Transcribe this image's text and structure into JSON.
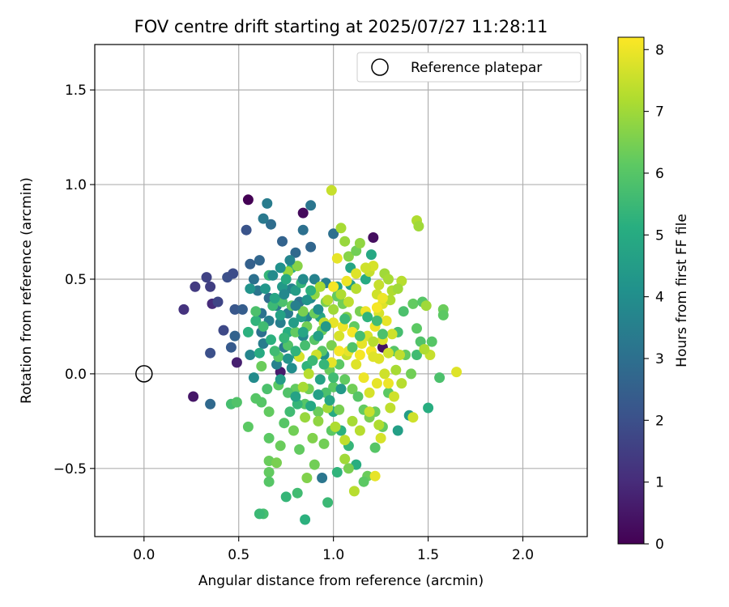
{
  "chart_data": {
    "type": "scatter",
    "title": "FOV centre drift starting at 2025/07/27 11:28:11",
    "xlabel": "Angular distance from reference (arcmin)",
    "ylabel": "Rotation from reference (arcmin)",
    "xlim": [
      -0.26,
      2.34
    ],
    "ylim": [
      -0.86,
      1.74
    ],
    "xticks": [
      0.0,
      0.5,
      1.0,
      1.5,
      2.0
    ],
    "xtick_labels": [
      "0.0",
      "0.5",
      "1.0",
      "1.5",
      "2.0"
    ],
    "yticks": [
      -0.5,
      0.0,
      0.5,
      1.0,
      1.5
    ],
    "ytick_labels": [
      "−0.5",
      "0.0",
      "0.5",
      "1.0",
      "1.5"
    ],
    "grid": true,
    "legend": {
      "position": "top-right",
      "entries": [
        {
          "label": "Reference platepar",
          "marker": "open-circle"
        }
      ]
    },
    "reference_point": {
      "x": 0.0,
      "y": 0.0
    },
    "colorbar": {
      "label": "Hours from first FF file",
      "colormap": "viridis",
      "range": [
        0,
        8.2
      ],
      "ticks": [
        0,
        1,
        2,
        3,
        4,
        5,
        6,
        7,
        8
      ],
      "tick_labels": [
        "0",
        "1",
        "2",
        "3",
        "4",
        "5",
        "6",
        "7",
        "8"
      ]
    },
    "points": [
      [
        0.55,
        0.92,
        0.0
      ],
      [
        0.84,
        0.85,
        0.2
      ],
      [
        1.21,
        0.72,
        0.3
      ],
      [
        0.26,
        -0.12,
        0.5
      ],
      [
        0.72,
        0.01,
        0.6
      ],
      [
        1.26,
        0.14,
        0.4
      ],
      [
        0.49,
        0.06,
        0.7
      ],
      [
        0.36,
        0.37,
        1.0
      ],
      [
        0.21,
        0.34,
        1.2
      ],
      [
        0.27,
        0.46,
        1.4
      ],
      [
        0.33,
        0.51,
        1.6
      ],
      [
        0.35,
        0.46,
        1.5
      ],
      [
        0.42,
        0.23,
        1.8
      ],
      [
        0.44,
        0.51,
        2.0
      ],
      [
        0.47,
        0.53,
        1.9
      ],
      [
        0.39,
        0.38,
        1.7
      ],
      [
        0.54,
        0.76,
        2.1
      ],
      [
        0.35,
        0.11,
        2.0
      ],
      [
        0.48,
        0.34,
        2.2
      ],
      [
        0.52,
        0.34,
        2.4
      ],
      [
        0.46,
        0.14,
        2.3
      ],
      [
        0.48,
        0.2,
        2.6
      ],
      [
        0.35,
        -0.16,
        2.8
      ],
      [
        0.56,
        0.58,
        2.5
      ],
      [
        0.61,
        0.6,
        2.7
      ],
      [
        0.67,
        0.79,
        2.9
      ],
      [
        0.73,
        0.7,
        2.6
      ],
      [
        0.8,
        0.64,
        2.8
      ],
      [
        0.84,
        0.76,
        3.0
      ],
      [
        0.88,
        0.89,
        3.2
      ],
      [
        0.65,
        0.9,
        3.4
      ],
      [
        0.63,
        0.82,
        3.3
      ],
      [
        0.58,
        0.5,
        3.0
      ],
      [
        0.6,
        0.44,
        3.2
      ],
      [
        0.62,
        0.32,
        3.1
      ],
      [
        0.66,
        0.4,
        2.9
      ],
      [
        0.7,
        0.36,
        3.3
      ],
      [
        0.72,
        0.27,
        3.5
      ],
      [
        0.76,
        0.32,
        3.4
      ],
      [
        0.78,
        0.45,
        3.6
      ],
      [
        0.82,
        0.38,
        3.1
      ],
      [
        0.86,
        0.3,
        3.7
      ],
      [
        0.88,
        0.4,
        3.8
      ],
      [
        0.9,
        0.5,
        3.6
      ],
      [
        0.63,
        0.16,
        3.4
      ],
      [
        0.56,
        0.1,
        3.7
      ],
      [
        0.58,
        -0.02,
        3.9
      ],
      [
        0.66,
        0.28,
        3.5
      ],
      [
        0.74,
        0.14,
        3.3
      ],
      [
        0.84,
        0.2,
        3.8
      ],
      [
        0.96,
        0.48,
        3.5
      ],
      [
        1.0,
        0.74,
        3.0
      ],
      [
        0.94,
        -0.55,
        3.2
      ],
      [
        0.88,
        0.67,
        2.7
      ],
      [
        0.62,
        0.22,
        3.0
      ],
      [
        0.7,
        0.05,
        3.6
      ],
      [
        0.78,
        0.03,
        4.0
      ],
      [
        0.95,
        0.1,
        4.1
      ],
      [
        0.56,
        0.45,
        4.2
      ],
      [
        0.64,
        0.45,
        4.3
      ],
      [
        0.73,
        0.46,
        4.4
      ],
      [
        0.8,
        0.44,
        4.5
      ],
      [
        0.83,
        0.3,
        4.6
      ],
      [
        0.93,
        0.3,
        4.8
      ],
      [
        1.02,
        0.46,
        4.7
      ],
      [
        1.09,
        0.47,
        4.6
      ],
      [
        1.09,
        0.56,
        4.8
      ],
      [
        1.2,
        0.63,
        4.9
      ],
      [
        1.17,
        0.5,
        5.0
      ],
      [
        0.78,
        0.56,
        5.1
      ],
      [
        0.59,
        0.28,
        5.3
      ],
      [
        0.66,
        0.52,
        5.4
      ],
      [
        0.55,
        0.22,
        5.2
      ],
      [
        0.61,
        0.11,
        5.0
      ],
      [
        0.67,
        0.18,
        5.2
      ],
      [
        0.76,
        0.22,
        5.1
      ],
      [
        0.81,
        0.1,
        4.9
      ],
      [
        0.86,
        0.04,
        5.3
      ],
      [
        0.93,
        -0.03,
        4.7
      ],
      [
        1.0,
        -0.2,
        5.0
      ],
      [
        1.04,
        -0.3,
        5.2
      ],
      [
        1.08,
        -0.38,
        5.4
      ],
      [
        1.12,
        -0.48,
        5.1
      ],
      [
        1.02,
        -0.52,
        5.3
      ],
      [
        0.97,
        -0.68,
        5.5
      ],
      [
        0.81,
        -0.63,
        5.6
      ],
      [
        0.75,
        -0.65,
        5.4
      ],
      [
        0.85,
        -0.77,
        5.2
      ],
      [
        0.63,
        -0.74,
        5.7
      ],
      [
        0.61,
        -0.74,
        5.5
      ],
      [
        1.4,
        -0.22,
        4.5
      ],
      [
        1.34,
        -0.3,
        4.6
      ],
      [
        1.5,
        -0.18,
        5.1
      ],
      [
        1.56,
        -0.02,
        5.8
      ],
      [
        1.44,
        0.1,
        5.6
      ],
      [
        1.46,
        0.17,
        5.9
      ],
      [
        1.52,
        0.17,
        6.0
      ],
      [
        1.44,
        0.24,
        6.1
      ],
      [
        1.42,
        0.37,
        6.2
      ],
      [
        1.47,
        0.38,
        6.0
      ],
      [
        1.58,
        0.34,
        6.3
      ],
      [
        1.58,
        0.31,
        6.1
      ],
      [
        1.37,
        0.33,
        5.8
      ],
      [
        1.34,
        0.22,
        5.7
      ],
      [
        1.32,
        0.12,
        6.0
      ],
      [
        1.38,
        0.1,
        6.2
      ],
      [
        1.41,
        0.0,
        6.4
      ],
      [
        1.29,
        -0.1,
        6.1
      ],
      [
        1.22,
        -0.2,
        6.3
      ],
      [
        1.26,
        -0.28,
        6.2
      ],
      [
        1.22,
        -0.39,
        6.0
      ],
      [
        1.18,
        -0.54,
        6.3
      ],
      [
        1.16,
        -0.57,
        6.1
      ],
      [
        1.08,
        -0.5,
        6.5
      ],
      [
        0.9,
        -0.48,
        6.4
      ],
      [
        0.86,
        -0.55,
        6.6
      ],
      [
        0.66,
        -0.52,
        6.2
      ],
      [
        0.66,
        -0.57,
        6.0
      ],
      [
        0.66,
        -0.46,
        6.3
      ],
      [
        0.7,
        -0.47,
        6.5
      ],
      [
        0.66,
        -0.34,
        6.1
      ],
      [
        0.72,
        -0.38,
        6.3
      ],
      [
        0.74,
        -0.26,
        6.0
      ],
      [
        0.79,
        -0.3,
        6.4
      ],
      [
        0.82,
        -0.4,
        6.2
      ],
      [
        0.89,
        -0.34,
        6.6
      ],
      [
        0.95,
        -0.37,
        6.4
      ],
      [
        0.99,
        -0.3,
        6.1
      ],
      [
        1.03,
        -0.19,
        6.5
      ],
      [
        0.92,
        -0.2,
        6.3
      ],
      [
        0.85,
        -0.16,
        6.0
      ],
      [
        0.8,
        -0.08,
        6.2
      ],
      [
        0.76,
        -0.1,
        5.9
      ],
      [
        0.71,
        -0.06,
        6.1
      ],
      [
        0.65,
        -0.08,
        5.8
      ],
      [
        0.62,
        -0.15,
        6.0
      ],
      [
        0.66,
        -0.2,
        6.2
      ],
      [
        0.55,
        -0.28,
        6.1
      ],
      [
        0.46,
        -0.16,
        5.7
      ],
      [
        0.49,
        -0.15,
        5.9
      ],
      [
        0.59,
        -0.13,
        6.0
      ],
      [
        0.62,
        0.04,
        6.3
      ],
      [
        0.71,
        0.09,
        6.1
      ],
      [
        0.76,
        0.15,
        5.9
      ],
      [
        0.8,
        0.22,
        6.2
      ],
      [
        0.86,
        0.25,
        6.4
      ],
      [
        0.9,
        0.18,
        6.0
      ],
      [
        0.94,
        0.23,
        6.3
      ],
      [
        0.99,
        0.15,
        6.5
      ],
      [
        1.03,
        0.05,
        6.1
      ],
      [
        1.06,
        -0.03,
        6.2
      ],
      [
        1.1,
        -0.08,
        6.4
      ],
      [
        1.13,
        -0.12,
        6.0
      ],
      [
        1.16,
        -0.19,
        6.2
      ],
      [
        1.19,
        -0.23,
        6.5
      ],
      [
        0.94,
        0.12,
        6.0
      ],
      [
        0.98,
        0.02,
        6.3
      ],
      [
        1.0,
        -0.07,
        6.1
      ],
      [
        0.87,
        -0.08,
        6.4
      ],
      [
        0.9,
        0.32,
        6.3
      ],
      [
        0.96,
        0.38,
        6.5
      ],
      [
        1.02,
        0.41,
        6.2
      ],
      [
        1.05,
        0.37,
        6.4
      ],
      [
        1.07,
        0.3,
        6.6
      ],
      [
        1.11,
        0.25,
        6.2
      ],
      [
        1.14,
        0.33,
        6.5
      ],
      [
        1.08,
        0.62,
        6.7
      ],
      [
        1.12,
        0.65,
        6.4
      ],
      [
        1.06,
        0.7,
        6.9
      ],
      [
        1.04,
        0.77,
        7.1
      ],
      [
        1.27,
        0.53,
        7.0
      ],
      [
        1.31,
        0.44,
        7.2
      ],
      [
        1.36,
        0.49,
        7.3
      ],
      [
        1.34,
        0.45,
        7.0
      ],
      [
        1.29,
        0.5,
        7.1
      ],
      [
        1.44,
        0.81,
        7.2
      ],
      [
        1.45,
        0.78,
        7.0
      ],
      [
        0.99,
        0.97,
        7.5
      ],
      [
        1.14,
        0.69,
        6.8
      ],
      [
        0.81,
        0.57,
        6.7
      ],
      [
        0.76,
        0.54,
        6.9
      ],
      [
        0.9,
        0.42,
        6.8
      ],
      [
        0.93,
        0.46,
        7.1
      ],
      [
        0.97,
        0.39,
        7.3
      ],
      [
        1.0,
        0.34,
        7.0
      ],
      [
        1.04,
        0.42,
        7.2
      ],
      [
        1.08,
        0.38,
        7.4
      ],
      [
        1.12,
        0.45,
        7.3
      ],
      [
        1.19,
        0.54,
        7.5
      ],
      [
        1.23,
        0.42,
        7.6
      ],
      [
        1.26,
        0.37,
        7.8
      ],
      [
        1.24,
        0.32,
        7.7
      ],
      [
        1.28,
        0.28,
        7.9
      ],
      [
        1.31,
        0.21,
        7.6
      ],
      [
        1.26,
        0.18,
        7.8
      ],
      [
        1.22,
        0.25,
        8.0
      ],
      [
        1.18,
        0.2,
        7.7
      ],
      [
        1.15,
        0.16,
        7.9
      ],
      [
        1.2,
        0.12,
        8.1
      ],
      [
        1.24,
        0.08,
        7.8
      ],
      [
        1.27,
        0.0,
        7.6
      ],
      [
        1.23,
        -0.05,
        7.9
      ],
      [
        1.19,
        -0.1,
        7.7
      ],
      [
        1.16,
        -0.02,
        8.0
      ],
      [
        1.12,
        0.05,
        7.8
      ],
      [
        1.07,
        0.1,
        7.5
      ],
      [
        1.03,
        0.2,
        7.7
      ],
      [
        1.0,
        0.27,
        7.9
      ],
      [
        0.95,
        0.27,
        7.4
      ],
      [
        0.91,
        0.1,
        7.6
      ],
      [
        0.87,
        0.0,
        7.3
      ],
      [
        0.84,
        -0.07,
        7.1
      ],
      [
        0.85,
        -0.23,
        6.9
      ],
      [
        0.92,
        -0.25,
        6.8
      ],
      [
        0.97,
        -0.18,
        7.0
      ],
      [
        1.01,
        -0.28,
        7.2
      ],
      [
        1.06,
        -0.35,
        7.4
      ],
      [
        1.1,
        -0.25,
        7.1
      ],
      [
        1.14,
        -0.3,
        7.3
      ],
      [
        1.19,
        -0.2,
        7.5
      ],
      [
        1.24,
        -0.27,
        7.2
      ],
      [
        1.3,
        -0.18,
        7.4
      ],
      [
        1.32,
        -0.12,
        7.6
      ],
      [
        1.36,
        -0.05,
        7.3
      ],
      [
        1.33,
        0.02,
        7.1
      ],
      [
        1.35,
        0.1,
        7.4
      ],
      [
        1.29,
        0.11,
        7.6
      ],
      [
        1.21,
        0.17,
        7.3
      ],
      [
        1.3,
        0.39,
        7.2
      ],
      [
        1.24,
        0.47,
        7.5
      ],
      [
        1.21,
        0.57,
        7.7
      ],
      [
        1.17,
        0.56,
        7.6
      ],
      [
        1.12,
        0.53,
        7.8
      ],
      [
        1.02,
        0.61,
        7.9
      ],
      [
        1.07,
        0.49,
        8.0
      ],
      [
        1.0,
        0.46,
        8.1
      ],
      [
        1.05,
        0.25,
        8.0
      ],
      [
        1.1,
        0.22,
        8.1
      ],
      [
        1.17,
        0.33,
        8.0
      ],
      [
        1.23,
        0.35,
        8.1
      ],
      [
        1.26,
        0.4,
        8.0
      ],
      [
        1.14,
        0.1,
        8.1
      ],
      [
        1.08,
        0.12,
        7.9
      ],
      [
        1.03,
        0.12,
        8.1
      ],
      [
        0.99,
        0.06,
        7.9
      ],
      [
        0.82,
        0.09,
        7.7
      ],
      [
        1.22,
        -0.54,
        7.9
      ],
      [
        1.25,
        -0.34,
        7.7
      ],
      [
        1.11,
        -0.62,
        7.3
      ],
      [
        1.06,
        -0.45,
        7.0
      ],
      [
        1.21,
        0.09,
        7.8
      ],
      [
        1.29,
        -0.05,
        8.0
      ],
      [
        1.51,
        0.1,
        7.5
      ],
      [
        1.65,
        0.01,
        7.8
      ],
      [
        1.42,
        -0.23,
        7.6
      ],
      [
        1.49,
        0.36,
        7.0
      ],
      [
        1.48,
        0.13,
        7.2
      ],
      [
        0.84,
        0.33,
        6.5
      ],
      [
        0.78,
        0.36,
        6.2
      ],
      [
        0.73,
        0.38,
        5.8
      ],
      [
        0.68,
        0.36,
        5.5
      ],
      [
        0.63,
        0.25,
        5.6
      ],
      [
        0.59,
        0.33,
        5.8
      ],
      [
        0.69,
        0.12,
        5.6
      ],
      [
        0.74,
        0.19,
        5.4
      ],
      [
        0.8,
        0.12,
        5.3
      ],
      [
        0.85,
        0.15,
        5.7
      ],
      [
        0.89,
        0.07,
        5.5
      ],
      [
        0.77,
        -0.2,
        5.6
      ],
      [
        0.81,
        -0.16,
        5.4
      ],
      [
        0.96,
        -0.1,
        5.8
      ],
      [
        1.0,
        -0.02,
        5.6
      ],
      [
        0.95,
        0.05,
        5.4
      ],
      [
        1.1,
        0.14,
        5.9
      ],
      [
        1.14,
        0.2,
        5.7
      ],
      [
        1.06,
        0.29,
        5.5
      ],
      [
        1.18,
        0.3,
        5.3
      ],
      [
        1.23,
        0.28,
        5.6
      ],
      [
        1.26,
        0.21,
        5.8
      ],
      [
        0.88,
        0.44,
        5.2
      ],
      [
        0.83,
        0.48,
        5.4
      ],
      [
        0.75,
        0.5,
        5.0
      ],
      [
        0.69,
        0.4,
        4.8
      ],
      [
        0.72,
        0.31,
        4.7
      ],
      [
        0.79,
        0.27,
        4.5
      ],
      [
        0.84,
        0.22,
        4.8
      ],
      [
        0.92,
        0.2,
        4.6
      ],
      [
        0.96,
        0.25,
        4.4
      ],
      [
        0.76,
        0.08,
        4.2
      ],
      [
        0.72,
        -0.03,
        4.5
      ],
      [
        0.8,
        -0.12,
        4.7
      ],
      [
        0.88,
        -0.17,
        4.9
      ],
      [
        0.92,
        -0.11,
        4.6
      ],
      [
        0.98,
        -0.14,
        4.8
      ],
      [
        1.04,
        -0.08,
        4.4
      ],
      [
        0.68,
        0.52,
        3.9
      ],
      [
        0.72,
        0.56,
        4.1
      ],
      [
        0.77,
        0.6,
        3.7
      ],
      [
        0.84,
        0.5,
        3.9
      ],
      [
        0.92,
        0.34,
        4.0
      ],
      [
        0.86,
        0.39,
        4.2
      ],
      [
        0.8,
        0.36,
        3.5
      ],
      [
        0.74,
        0.42,
        3.8
      ]
    ]
  }
}
